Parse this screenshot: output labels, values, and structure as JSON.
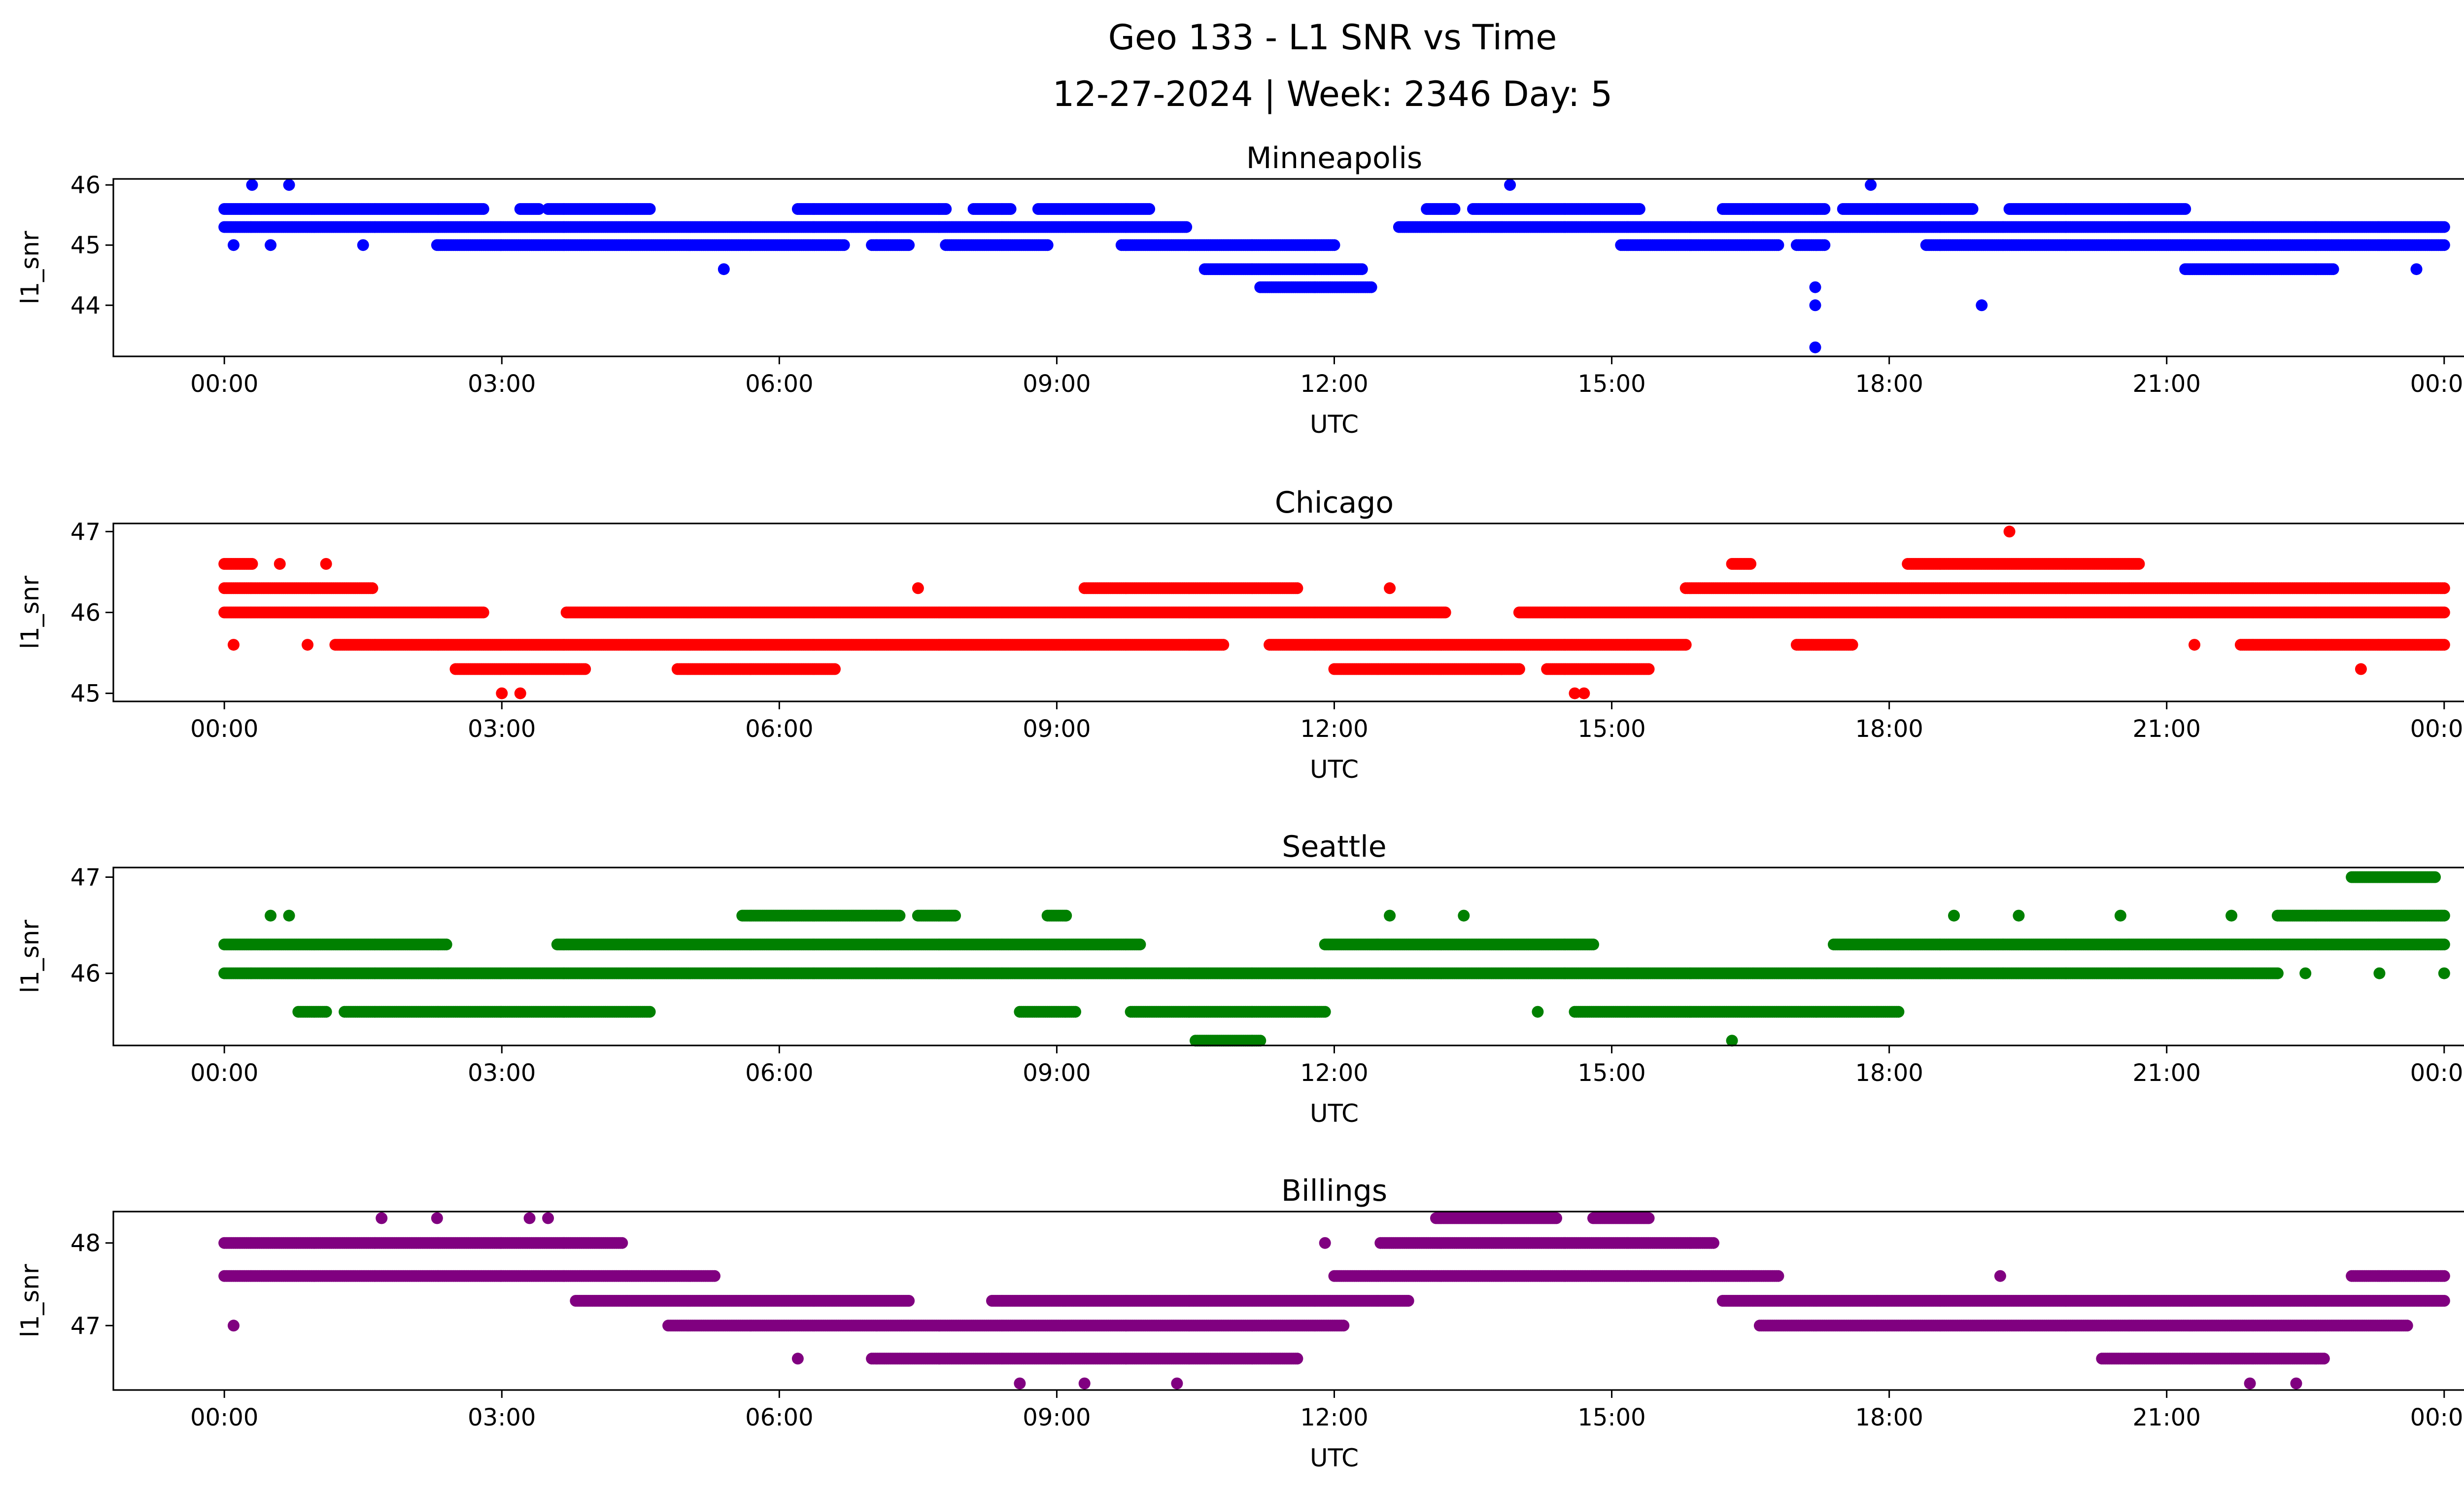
{
  "figure": {
    "title_line1": "Geo 133 - L1 SNR vs Time",
    "title_line2": "12-27-2024 | Week: 2346 Day: 5"
  },
  "chart_data": [
    {
      "type": "scatter",
      "title": "Minneapolis",
      "color": "#0000ff",
      "xlabel": "UTC",
      "ylabel": "l1_snr",
      "xlim": [
        -1.2,
        25.2
      ],
      "ylim": [
        43.15,
        46.1
      ],
      "x_ticks": [
        0,
        3,
        6,
        9,
        12,
        15,
        18,
        21,
        24
      ],
      "x_tick_labels": [
        "00:00",
        "03:00",
        "06:00",
        "09:00",
        "12:00",
        "15:00",
        "18:00",
        "21:00",
        "00:00"
      ],
      "y_ticks": [
        44,
        45,
        46
      ],
      "y_tick_labels": [
        "44",
        "45",
        "46"
      ],
      "series": [
        {
          "y": 45.3,
          "segments": [
            [
              0.0,
              10.4
            ],
            [
              12.7,
              24.0
            ]
          ]
        },
        {
          "y": 45.6,
          "segments": [
            [
              0.0,
              2.8
            ],
            [
              3.2,
              3.4
            ],
            [
              3.5,
              4.6
            ],
            [
              6.2,
              7.8
            ],
            [
              8.1,
              8.5
            ],
            [
              8.8,
              10.0
            ],
            [
              13.0,
              13.3
            ],
            [
              13.5,
              15.3
            ],
            [
              16.2,
              17.3
            ],
            [
              17.5,
              18.9
            ],
            [
              19.3,
              21.2
            ]
          ]
        },
        {
          "y": 45.0,
          "segments": [
            [
              2.3,
              6.7
            ],
            [
              7.0,
              7.4
            ],
            [
              7.8,
              8.9
            ],
            [
              9.7,
              12.0
            ],
            [
              15.1,
              16.8
            ],
            [
              17.0,
              17.3
            ],
            [
              18.4,
              24.0
            ]
          ]
        },
        {
          "y": 44.6,
          "segments": [
            [
              10.6,
              12.3
            ],
            [
              21.2,
              22.8
            ]
          ]
        },
        {
          "y": 44.3,
          "segments": [
            [
              11.2,
              12.4
            ]
          ]
        }
      ],
      "points": [
        [
          0.3,
          46.0
        ],
        [
          0.7,
          46.0
        ],
        [
          13.9,
          46.0
        ],
        [
          17.8,
          46.0
        ],
        [
          0.1,
          45.0
        ],
        [
          0.5,
          45.0
        ],
        [
          1.5,
          45.0
        ],
        [
          5.4,
          44.6
        ],
        [
          23.7,
          44.6
        ],
        [
          19.0,
          44.0
        ],
        [
          17.2,
          44.3
        ],
        [
          17.2,
          44.0
        ],
        [
          17.2,
          43.3
        ]
      ]
    },
    {
      "type": "scatter",
      "title": "Chicago",
      "color": "#ff0000",
      "xlabel": "UTC",
      "ylabel": "l1_snr",
      "xlim": [
        -1.2,
        25.2
      ],
      "ylim": [
        44.9,
        47.1
      ],
      "x_ticks": [
        0,
        3,
        6,
        9,
        12,
        15,
        18,
        21,
        24
      ],
      "x_tick_labels": [
        "00:00",
        "03:00",
        "06:00",
        "09:00",
        "12:00",
        "15:00",
        "18:00",
        "21:00",
        "00:00"
      ],
      "y_ticks": [
        45,
        46,
        47
      ],
      "y_tick_labels": [
        "45",
        "46",
        "47"
      ],
      "series": [
        {
          "y": 46.3,
          "segments": [
            [
              0.0,
              1.6
            ],
            [
              9.3,
              11.6
            ],
            [
              15.8,
              24.0
            ]
          ]
        },
        {
          "y": 46.0,
          "segments": [
            [
              0.0,
              2.8
            ],
            [
              3.7,
              13.2
            ],
            [
              14.0,
              24.0
            ]
          ]
        },
        {
          "y": 45.6,
          "segments": [
            [
              1.2,
              10.8
            ],
            [
              11.3,
              15.8
            ],
            [
              17.0,
              17.6
            ],
            [
              21.8,
              24.0
            ]
          ]
        },
        {
          "y": 45.3,
          "segments": [
            [
              2.5,
              3.9
            ],
            [
              4.9,
              6.6
            ],
            [
              12.0,
              14.0
            ],
            [
              14.3,
              15.4
            ]
          ]
        },
        {
          "y": 46.6,
          "segments": [
            [
              0.0,
              0.3
            ],
            [
              16.3,
              16.5
            ],
            [
              18.2,
              20.7
            ]
          ]
        }
      ],
      "points": [
        [
          3.0,
          45.0
        ],
        [
          3.2,
          45.0
        ],
        [
          14.6,
          45.0
        ],
        [
          14.7,
          45.0
        ],
        [
          19.3,
          47.0
        ],
        [
          0.1,
          45.6
        ],
        [
          0.9,
          45.6
        ],
        [
          21.3,
          45.6
        ],
        [
          23.1,
          45.3
        ],
        [
          7.5,
          46.3
        ],
        [
          12.6,
          46.3
        ],
        [
          1.1,
          46.6
        ],
        [
          0.6,
          46.6
        ]
      ]
    },
    {
      "type": "scatter",
      "title": "Seattle",
      "color": "#008000",
      "xlabel": "UTC",
      "ylabel": "l1_snr",
      "xlim": [
        -1.2,
        25.2
      ],
      "ylim": [
        45.25,
        47.1
      ],
      "x_ticks": [
        0,
        3,
        6,
        9,
        12,
        15,
        18,
        21,
        24
      ],
      "x_tick_labels": [
        "00:00",
        "03:00",
        "06:00",
        "09:00",
        "12:00",
        "15:00",
        "18:00",
        "21:00",
        "00:00"
      ],
      "y_ticks": [
        46,
        47
      ],
      "y_tick_labels": [
        "46",
        "47"
      ],
      "series": [
        {
          "y": 46.0,
          "segments": [
            [
              0.0,
              22.2
            ]
          ]
        },
        {
          "y": 46.3,
          "segments": [
            [
              0.0,
              2.4
            ],
            [
              3.6,
              9.9
            ],
            [
              11.9,
              14.8
            ],
            [
              17.4,
              24.0
            ]
          ]
        },
        {
          "y": 45.6,
          "segments": [
            [
              0.8,
              1.1
            ],
            [
              1.3,
              4.6
            ],
            [
              8.6,
              9.2
            ],
            [
              9.8,
              11.9
            ],
            [
              14.6,
              18.1
            ]
          ]
        },
        {
          "y": 45.3,
          "segments": [
            [
              10.5,
              11.2
            ]
          ]
        },
        {
          "y": 46.6,
          "segments": [
            [
              5.6,
              7.3
            ],
            [
              7.5,
              7.9
            ],
            [
              8.9,
              9.1
            ],
            [
              22.2,
              24.0
            ]
          ]
        },
        {
          "y": 47.0,
          "segments": [
            [
              23.0,
              23.9
            ]
          ]
        }
      ],
      "points": [
        [
          0.5,
          46.6
        ],
        [
          0.7,
          46.6
        ],
        [
          12.6,
          46.6
        ],
        [
          13.4,
          46.6
        ],
        [
          18.7,
          46.6
        ],
        [
          19.4,
          46.6
        ],
        [
          20.5,
          46.6
        ],
        [
          21.7,
          46.6
        ],
        [
          14.2,
          45.6
        ],
        [
          16.3,
          45.3
        ],
        [
          22.5,
          46.0
        ],
        [
          23.3,
          46.0
        ],
        [
          24.0,
          46.0
        ]
      ]
    },
    {
      "type": "scatter",
      "title": "Billings",
      "color": "#800080",
      "xlabel": "UTC",
      "ylabel": "l1_snr",
      "xlim": [
        -1.2,
        25.2
      ],
      "ylim": [
        46.22,
        48.38
      ],
      "x_ticks": [
        0,
        3,
        6,
        9,
        12,
        15,
        18,
        21,
        24
      ],
      "x_tick_labels": [
        "00:00",
        "03:00",
        "06:00",
        "09:00",
        "12:00",
        "15:00",
        "18:00",
        "21:00",
        "00:00"
      ],
      "y_ticks": [
        47,
        48
      ],
      "y_tick_labels": [
        "47",
        "48"
      ],
      "series": [
        {
          "y": 48.0,
          "segments": [
            [
              0.0,
              4.3
            ],
            [
              12.5,
              16.1
            ]
          ]
        },
        {
          "y": 47.6,
          "segments": [
            [
              0.0,
              5.3
            ],
            [
              12.0,
              16.8
            ],
            [
              23.0,
              24.0
            ]
          ]
        },
        {
          "y": 47.3,
          "segments": [
            [
              3.8,
              7.4
            ],
            [
              8.3,
              12.8
            ],
            [
              16.2,
              24.0
            ]
          ]
        },
        {
          "y": 47.0,
          "segments": [
            [
              4.8,
              12.1
            ],
            [
              16.6,
              23.6
            ]
          ]
        },
        {
          "y": 46.6,
          "segments": [
            [
              7.0,
              11.6
            ],
            [
              20.3,
              22.7
            ]
          ]
        },
        {
          "y": 48.3,
          "segments": [
            [
              13.1,
              14.4
            ],
            [
              14.8,
              15.4
            ]
          ]
        }
      ],
      "points": [
        [
          1.7,
          48.3
        ],
        [
          2.3,
          48.3
        ],
        [
          3.3,
          48.3
        ],
        [
          3.5,
          48.3
        ],
        [
          0.1,
          47.0
        ],
        [
          8.6,
          46.3
        ],
        [
          9.3,
          46.3
        ],
        [
          10.3,
          46.3
        ],
        [
          21.9,
          46.3
        ],
        [
          22.4,
          46.3
        ],
        [
          6.2,
          46.6
        ],
        [
          19.2,
          47.6
        ],
        [
          11.9,
          48.0
        ]
      ]
    }
  ]
}
